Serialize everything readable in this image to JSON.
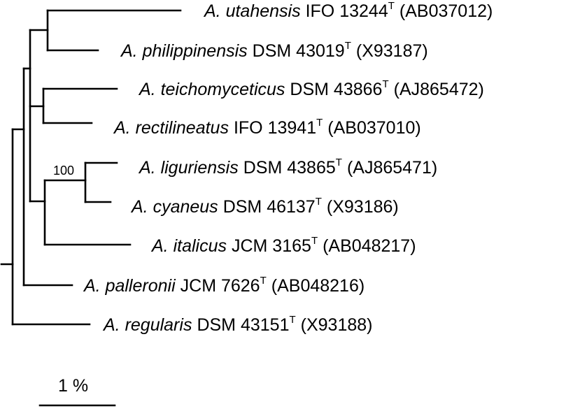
{
  "tree": {
    "taxa": [
      {
        "species": "A. utahensis",
        "strain": "IFO 13244",
        "type_mark": "T",
        "accession": "(AB037012)"
      },
      {
        "species": "A. philippinensis",
        "strain": "DSM 43019",
        "type_mark": "T",
        "accession": "(X93187)"
      },
      {
        "species": "A. teichomyceticus",
        "strain": "DSM 43866",
        "type_mark": "T",
        "accession": "(AJ865472)"
      },
      {
        "species": "A. rectilineatus",
        "strain": "IFO 13941",
        "type_mark": "T",
        "accession": "(AB037010)"
      },
      {
        "species": "A. liguriensis",
        "strain": "DSM 43865",
        "type_mark": "T",
        "accession": "(AJ865471)"
      },
      {
        "species": "A. cyaneus",
        "strain": "DSM 46137",
        "type_mark": "T",
        "accession": "(X93186)"
      },
      {
        "species": "A. italicus",
        "strain": "JCM 3165",
        "type_mark": "T",
        "accession": "(AB048217)"
      },
      {
        "species": "A. palleronii",
        "strain": "JCM 7626",
        "type_mark": "T",
        "accession": "(AB048216)"
      },
      {
        "species": "A. regularis",
        "strain": "DSM 43151",
        "type_mark": "T",
        "accession": "(X93188)"
      }
    ],
    "bootstrap_values": [
      "100"
    ]
  },
  "scale_bar": {
    "label": "1 %"
  }
}
